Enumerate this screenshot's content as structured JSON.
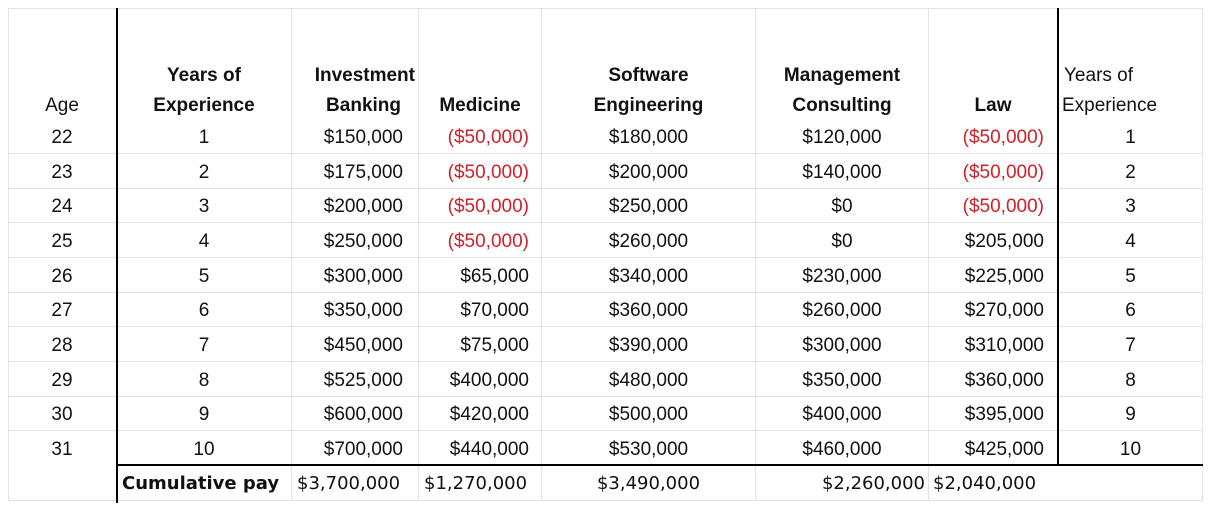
{
  "headers": {
    "age": "Age",
    "years_a": "Years of",
    "years_b": "Experience",
    "ib_a": "Investment",
    "ib_b": "Banking",
    "med": "Medicine",
    "se_a": "Software",
    "se_b": "Engineering",
    "mc_a": "Management",
    "mc_b": "Consulting",
    "law": "Law",
    "yr2_a": "Years of",
    "yr2_b": "Experience"
  },
  "rows": [
    {
      "age": "22",
      "years": "1",
      "ib": "$150,000",
      "med": "($50,000)",
      "se": "$180,000",
      "mc": "$120,000",
      "law": "($50,000)",
      "years2": "1"
    },
    {
      "age": "23",
      "years": "2",
      "ib": "$175,000",
      "med": "($50,000)",
      "se": "$200,000",
      "mc": "$140,000",
      "law": "($50,000)",
      "years2": "2"
    },
    {
      "age": "24",
      "years": "3",
      "ib": "$200,000",
      "med": "($50,000)",
      "se": "$250,000",
      "mc": "$0",
      "law": "($50,000)",
      "years2": "3"
    },
    {
      "age": "25",
      "years": "4",
      "ib": "$250,000",
      "med": "($50,000)",
      "se": "$260,000",
      "mc": "$0",
      "law": "$205,000",
      "years2": "4"
    },
    {
      "age": "26",
      "years": "5",
      "ib": "$300,000",
      "med": "$65,000",
      "se": "$340,000",
      "mc": "$230,000",
      "law": "$225,000",
      "years2": "5"
    },
    {
      "age": "27",
      "years": "6",
      "ib": "$350,000",
      "med": "$70,000",
      "se": "$360,000",
      "mc": "$260,000",
      "law": "$270,000",
      "years2": "6"
    },
    {
      "age": "28",
      "years": "7",
      "ib": "$450,000",
      "med": "$75,000",
      "se": "$390,000",
      "mc": "$300,000",
      "law": "$310,000",
      "years2": "7"
    },
    {
      "age": "29",
      "years": "8",
      "ib": "$525,000",
      "med": "$400,000",
      "se": "$480,000",
      "mc": "$350,000",
      "law": "$360,000",
      "years2": "8"
    },
    {
      "age": "30",
      "years": "9",
      "ib": "$600,000",
      "med": "$420,000",
      "se": "$500,000",
      "mc": "$400,000",
      "law": "$395,000",
      "years2": "9"
    },
    {
      "age": "31",
      "years": "10",
      "ib": "$700,000",
      "med": "$440,000",
      "se": "$530,000",
      "mc": "$460,000",
      "law": "$425,000",
      "years2": "10"
    }
  ],
  "totals": {
    "label": "Cumulative pay",
    "ib": "$3,700,000",
    "med": "$1,270,000",
    "se": "$3,490,000",
    "mc": "$2,260,000",
    "law": "$2,040,000"
  },
  "colors": {
    "negative": "#d0202a",
    "gridline": "#e3e3e3",
    "border": "#000000"
  }
}
